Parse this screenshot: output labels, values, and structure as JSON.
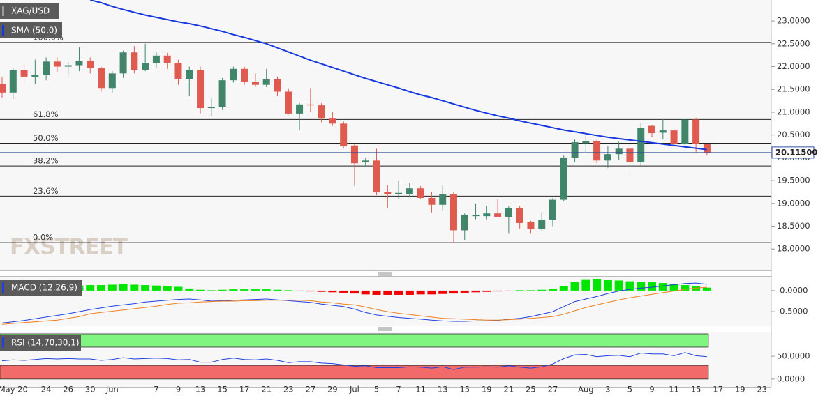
{
  "chart_data": [
    {
      "type": "candlestick",
      "title": "XAG/USD",
      "categories": [
        null,
        "May 20",
        null,
        null,
        "24",
        null,
        "26",
        null,
        "30",
        null,
        "Jun",
        null,
        null,
        null,
        "7",
        null,
        "9",
        null,
        "13",
        null,
        "15",
        null,
        "17",
        null,
        "21",
        null,
        "23",
        null,
        "27",
        null,
        "29",
        null,
        "Jul",
        null,
        "5",
        null,
        "7",
        null,
        "11",
        null,
        "13",
        null,
        "15",
        null,
        "19",
        null,
        "21",
        null,
        "25",
        null,
        "27",
        null,
        null,
        "Aug",
        null,
        "3",
        null,
        "5",
        null,
        "9",
        null,
        "11",
        null,
        "15",
        null,
        "17",
        null,
        "19",
        null,
        "23"
      ],
      "open": [
        21.62,
        21.43,
        21.93,
        21.78,
        21.81,
        22.11,
        22.0,
        22.03,
        22.12,
        21.97,
        21.53,
        21.85,
        22.31,
        21.93,
        22.08,
        22.24,
        22.08,
        21.73,
        21.93,
        21.09,
        21.12,
        21.7,
        21.95,
        21.67,
        21.6,
        21.72,
        21.45,
        20.97,
        21.17,
        21.15,
        20.86,
        20.75,
        20.27,
        19.9,
        19.94,
        19.25,
        19.2,
        19.2,
        19.33,
        19.12,
        18.97,
        19.2,
        18.41,
        18.72,
        18.72,
        18.78,
        18.7,
        18.9,
        18.6,
        18.44,
        18.64,
        19.08,
        20.0,
        20.32,
        20.36,
        19.94,
        20.08,
        20.2,
        19.9,
        20.7,
        20.55,
        20.6,
        20.3,
        20.84,
        20.3,
        null,
        null,
        null,
        null,
        null
      ],
      "high": [
        21.77,
        21.97,
        22.05,
        22.15,
        22.2,
        22.2,
        22.1,
        22.42,
        22.2,
        22.0,
        21.9,
        22.35,
        22.45,
        22.5,
        22.32,
        22.3,
        22.15,
        22.0,
        22.0,
        21.3,
        21.75,
        22.0,
        22.0,
        21.85,
        21.95,
        21.78,
        21.52,
        21.2,
        21.53,
        21.2,
        21.0,
        20.8,
        20.3,
        20.0,
        20.2,
        19.4,
        19.5,
        19.45,
        19.38,
        19.25,
        19.4,
        19.25,
        18.78,
        19.0,
        18.95,
        19.1,
        18.95,
        18.95,
        18.62,
        18.8,
        19.12,
        20.05,
        20.4,
        20.55,
        20.4,
        20.25,
        20.35,
        20.3,
        20.75,
        20.72,
        20.85,
        20.65,
        20.86,
        20.88,
        20.3,
        null,
        null,
        null,
        null,
        null
      ],
      "low": [
        21.32,
        21.29,
        21.62,
        21.62,
        21.7,
        21.88,
        21.8,
        21.9,
        21.85,
        21.45,
        21.42,
        21.75,
        21.85,
        21.9,
        21.98,
        21.95,
        21.6,
        21.35,
        20.97,
        20.92,
        21.05,
        21.65,
        21.6,
        21.55,
        21.55,
        21.35,
        20.95,
        20.6,
        21.0,
        20.78,
        20.7,
        20.2,
        19.38,
        19.8,
        19.18,
        18.9,
        19.1,
        19.13,
        19.1,
        18.8,
        18.85,
        18.13,
        18.2,
        18.65,
        18.65,
        18.7,
        18.35,
        18.45,
        18.35,
        18.4,
        18.5,
        19.05,
        19.9,
        20.1,
        19.88,
        19.78,
        19.95,
        19.55,
        19.8,
        20.45,
        20.4,
        20.2,
        20.25,
        20.12,
        20.05,
        null,
        null,
        null,
        null,
        null
      ],
      "close": [
        21.43,
        21.93,
        21.78,
        21.81,
        22.11,
        22.0,
        22.03,
        22.12,
        21.97,
        21.53,
        21.85,
        22.31,
        21.93,
        22.08,
        22.24,
        22.08,
        21.73,
        21.93,
        21.09,
        21.12,
        21.7,
        21.95,
        21.67,
        21.6,
        21.72,
        21.45,
        20.97,
        21.17,
        21.15,
        20.86,
        20.75,
        20.25,
        19.88,
        19.94,
        19.24,
        19.2,
        19.23,
        19.33,
        19.12,
        18.97,
        19.2,
        18.41,
        18.75,
        18.74,
        18.78,
        18.7,
        18.9,
        18.57,
        18.44,
        18.64,
        19.08,
        20.0,
        20.34,
        20.36,
        19.94,
        20.08,
        20.2,
        19.9,
        20.66,
        20.54,
        20.6,
        20.3,
        20.84,
        20.3,
        20.12,
        null,
        null,
        null,
        null,
        null
      ],
      "up_color": "#41866b",
      "down_color": "#e05b4f",
      "series": [
        {
          "name": "SMA (50,0)",
          "color": "#1638e0",
          "values": [
            null,
            null,
            null,
            null,
            null,
            null,
            null,
            null,
            23.46,
            23.4,
            23.32,
            23.25,
            23.19,
            23.13,
            23.08,
            23.03,
            22.98,
            22.94,
            22.89,
            22.83,
            22.77,
            22.7,
            22.64,
            22.57,
            22.5,
            22.41,
            22.32,
            22.23,
            22.14,
            22.06,
            21.98,
            21.9,
            21.82,
            21.74,
            21.67,
            21.6,
            21.53,
            21.45,
            21.38,
            21.32,
            21.25,
            21.18,
            21.11,
            21.04,
            20.98,
            20.92,
            20.87,
            20.81,
            20.76,
            20.71,
            20.66,
            20.61,
            20.57,
            20.53,
            20.49,
            20.45,
            20.42,
            20.39,
            20.36,
            20.33,
            20.3,
            20.27,
            20.24,
            20.21,
            20.18,
            null,
            null,
            null,
            null,
            null
          ]
        }
      ],
      "ylim": [
        17.53,
        23.46
      ],
      "yticks": [
        {
          "value": 18,
          "label": "18.0000"
        },
        {
          "value": 18.5,
          "label": "18.5000"
        },
        {
          "value": 19,
          "label": "19.0000"
        },
        {
          "value": 19.5,
          "label": "19.5000"
        },
        {
          "value": 20,
          "label": "20.0000"
        },
        {
          "value": 20.5,
          "label": "20.5000"
        },
        {
          "value": 21,
          "label": "21.0000"
        },
        {
          "value": 21.5,
          "label": "21.5000"
        },
        {
          "value": 22,
          "label": "22.0000"
        },
        {
          "value": 22.5,
          "label": "22.5000"
        },
        {
          "value": 23,
          "label": "23.0000"
        }
      ],
      "levels": [
        {
          "label": "100.0%",
          "value": 22.53
        },
        {
          "label": "61.8%",
          "value": 20.84
        },
        {
          "label": "50.0%",
          "value": 20.32
        },
        {
          "label": "38.2%",
          "value": 19.82
        },
        {
          "label": "23.6%",
          "value": 19.16
        },
        {
          "label": "0.0%",
          "value": 18.14
        }
      ],
      "last_price": {
        "value": 20.115,
        "label": "20.11500"
      },
      "watermark": "FXSTREET"
    },
    {
      "type": "macd",
      "title": "MACD (12,26,9)",
      "histogram": [
        0.12,
        0.12,
        0.12,
        0.12,
        0.12,
        0.12,
        0.12,
        0.12,
        0.13,
        0.13,
        0.14,
        0.15,
        0.14,
        0.13,
        0.12,
        0.11,
        0.09,
        0.05,
        0.02,
        0.01,
        0.02,
        0.03,
        0.03,
        0.03,
        0.03,
        0.02,
        0.01,
        -0.01,
        -0.02,
        -0.03,
        -0.04,
        -0.05,
        -0.07,
        -0.09,
        -0.1,
        -0.1,
        -0.1,
        -0.1,
        -0.09,
        -0.09,
        -0.08,
        -0.07,
        -0.05,
        -0.04,
        -0.03,
        -0.02,
        -0.01,
        0.01,
        0.01,
        0.02,
        0.04,
        0.11,
        0.2,
        0.27,
        0.28,
        0.26,
        0.24,
        0.22,
        0.21,
        0.2,
        0.18,
        0.16,
        0.13,
        0.1,
        0.07,
        null,
        null,
        null,
        null,
        null
      ],
      "positive_color": "#00e600",
      "negative_color": "#f00000",
      "series": [
        {
          "color": "#2040e0",
          "values": [
            -0.77,
            -0.74,
            -0.71,
            -0.67,
            -0.63,
            -0.59,
            -0.55,
            -0.5,
            -0.45,
            -0.41,
            -0.37,
            -0.34,
            -0.31,
            -0.27,
            -0.25,
            -0.23,
            -0.21,
            -0.2,
            -0.22,
            -0.25,
            -0.24,
            -0.23,
            -0.22,
            -0.21,
            -0.2,
            -0.22,
            -0.24,
            -0.26,
            -0.28,
            -0.32,
            -0.35,
            -0.38,
            -0.44,
            -0.52,
            -0.58,
            -0.61,
            -0.64,
            -0.66,
            -0.68,
            -0.7,
            -0.72,
            -0.73,
            -0.73,
            -0.72,
            -0.72,
            -0.71,
            -0.68,
            -0.66,
            -0.62,
            -0.56,
            -0.5,
            -0.38,
            -0.26,
            -0.2,
            -0.14,
            -0.07,
            -0.01,
            0.03,
            0.06,
            0.08,
            0.11,
            0.14,
            0.17,
            0.18,
            0.15,
            null,
            null,
            null,
            null,
            null
          ]
        },
        {
          "color": "#f08020",
          "values": [
            -0.8,
            -0.78,
            -0.76,
            -0.74,
            -0.72,
            -0.7,
            -0.66,
            -0.62,
            -0.55,
            -0.52,
            -0.49,
            -0.46,
            -0.43,
            -0.4,
            -0.37,
            -0.33,
            -0.3,
            -0.29,
            -0.27,
            -0.26,
            -0.25,
            -0.25,
            -0.24,
            -0.24,
            -0.23,
            -0.23,
            -0.23,
            -0.23,
            -0.24,
            -0.27,
            -0.29,
            -0.32,
            -0.34,
            -0.39,
            -0.45,
            -0.5,
            -0.54,
            -0.57,
            -0.6,
            -0.63,
            -0.66,
            -0.67,
            -0.68,
            -0.69,
            -0.7,
            -0.7,
            -0.69,
            -0.68,
            -0.66,
            -0.64,
            -0.62,
            -0.56,
            -0.48,
            -0.4,
            -0.34,
            -0.28,
            -0.22,
            -0.17,
            -0.13,
            -0.09,
            -0.05,
            -0.01,
            0.03,
            0.06,
            0.08,
            null,
            null,
            null,
            null,
            null
          ]
        }
      ],
      "ylim": [
        -0.83,
        0.33
      ],
      "yticks": [
        {
          "value": 0,
          "label": "-0.0000"
        },
        {
          "value": -0.5,
          "label": "-0.5000"
        }
      ]
    },
    {
      "type": "rsi",
      "title": "RSI (14,70,30,1)",
      "values": [
        40,
        42,
        41,
        43,
        45,
        44,
        45,
        44,
        44,
        41,
        43,
        47,
        44,
        45,
        46,
        45,
        42,
        43,
        37,
        37,
        43,
        46,
        43,
        42,
        44,
        41,
        36,
        38,
        38,
        35,
        34,
        31,
        28,
        29,
        25,
        25,
        25,
        27,
        26,
        24,
        27,
        21,
        26,
        26,
        27,
        26,
        29,
        26,
        24,
        27,
        33,
        45,
        53,
        54,
        49,
        51,
        52,
        49,
        57,
        55,
        55,
        51,
        58,
        51,
        49,
        null,
        null,
        null,
        null,
        null
      ],
      "color": "#2040e0",
      "overbought": 70,
      "oversold": 30,
      "overbought_color": "#80f580",
      "oversold_color": "#f26a6a",
      "ylim": [
        -17,
        102
      ],
      "yticks": [
        {
          "value": 50,
          "label": "50.0000"
        },
        {
          "value": 0,
          "label": "0.0000"
        }
      ]
    }
  ]
}
